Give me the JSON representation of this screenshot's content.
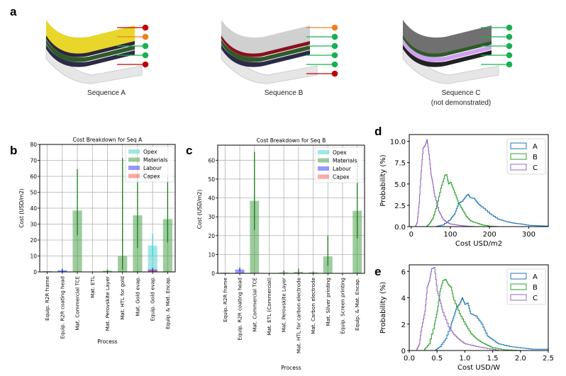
{
  "panel_a": {
    "letter": "a",
    "sequences": [
      {
        "label": "Sequence A",
        "sublabel": "",
        "layer_colors": [
          "#e8d62a",
          "#c9c9f0",
          "#8b0f1e",
          "#2c2440",
          "#2f5a2a",
          "#2c2a48",
          "#e8e8e8"
        ],
        "markers": [
          "#c00000",
          "#f08020",
          "#18b050",
          "#18b050",
          "#c00000"
        ]
      },
      {
        "label": "Sequence B",
        "sublabel": "",
        "layer_colors": [
          "#d0d0d0",
          "#111111",
          "#c9c9f0",
          "#8b0f1e",
          "#2f5a2a",
          "#2c2a48",
          "#e8e8e8"
        ],
        "markers": [
          "#f08020",
          "#18b050",
          "#18b050",
          "#18b050",
          "#18b050",
          "#c00000"
        ]
      },
      {
        "label": "Sequence C",
        "sublabel": "(not demonstrated)",
        "layer_colors": [
          "#707070",
          "#111111",
          "#8b0f1e",
          "#2f5a2a",
          "#d0a0f0",
          "#222222",
          "#e8e8e8"
        ],
        "markers": [
          "#18b050",
          "#18b050",
          "#18b050",
          "#18b050",
          "#18b050"
        ]
      }
    ]
  },
  "chart_data": [
    {
      "id": "b",
      "letter": "b",
      "type": "bar",
      "title": "Cost Breakdown for Seq A",
      "xlabel": "Process",
      "ylabel": "Cost (USD/m2)",
      "ylim": [
        0,
        80
      ],
      "yticks": [
        0,
        10,
        20,
        30,
        40,
        50,
        60,
        70,
        80
      ],
      "grid": true,
      "legend_position": "top-right",
      "categories": [
        "Equip. R2R frame",
        "Equip. R2R coating head",
        "Mat. Commercial TCE",
        "Mat. ETL",
        "Mat. Perovskite Layer",
        "Mat. HTL for gold",
        "Mat. Gold evap.",
        "Equip. Gold evap.",
        "Equip. & Mat. Encap."
      ],
      "series": [
        {
          "name": "Opex",
          "color": "#40d0d0",
          "values": [
            0.3,
            0.5,
            0,
            0,
            0,
            0,
            0,
            16.5,
            0
          ],
          "err_low": [
            0,
            0,
            0,
            0,
            0,
            0,
            0,
            10.5,
            0
          ],
          "err_high": [
            0,
            0,
            0,
            0,
            0,
            0,
            0,
            24,
            0
          ]
        },
        {
          "name": "Materials",
          "color": "#3c9a3c",
          "values": [
            0,
            0,
            38.5,
            0,
            0.8,
            10,
            35.5,
            0,
            33.2
          ],
          "err_low": [
            0,
            0,
            23,
            0,
            0,
            1.5,
            15,
            0,
            18.5
          ],
          "err_high": [
            0,
            0,
            64.5,
            0,
            1.5,
            71.5,
            78,
            0,
            60
          ]
        },
        {
          "name": "Labour",
          "color": "#3030ff",
          "values": [
            0.4,
            1.0,
            0,
            0,
            0,
            0,
            0,
            1.5,
            0
          ],
          "err_low": [
            0,
            0,
            0,
            0,
            0,
            0,
            0,
            0,
            0
          ],
          "err_high": [
            0,
            2,
            0,
            0,
            0,
            0,
            0,
            2.5,
            0
          ]
        },
        {
          "name": "Capex",
          "color": "#ff5050",
          "values": [
            0,
            0,
            0,
            0,
            0,
            0,
            0,
            1.5,
            0
          ],
          "err_low": [
            0,
            0,
            0,
            0,
            0,
            0,
            0,
            0,
            0
          ],
          "err_high": [
            0,
            0,
            0,
            0,
            0,
            0,
            0,
            0,
            0
          ]
        }
      ]
    },
    {
      "id": "c",
      "letter": "c",
      "type": "bar",
      "title": "Cost Breakdown for Seq B",
      "xlabel": "Process",
      "ylabel": "Cost (USD/m2)",
      "ylim": [
        0,
        68
      ],
      "yticks": [
        0,
        10,
        20,
        30,
        40,
        50,
        60
      ],
      "grid": true,
      "legend_position": "top-right",
      "categories": [
        "Equip. R2R frame",
        "Equip. R2R coating head",
        "Mat. Commercial TCE",
        "Mat. ETL (Commercial)",
        "Mat. Perovskite Layer",
        "Mat. HTL for carbon electrode",
        "Mat. Carbon electrode",
        "Mat. Silver printing",
        "Equip. Screen printing",
        "Equip. & Mat. Encap."
      ],
      "series": [
        {
          "name": "Opex",
          "color": "#40d0d0",
          "values": [
            0.2,
            0,
            0,
            0,
            0,
            0,
            0,
            0,
            0,
            0
          ],
          "err_low": [
            0,
            0,
            0,
            0,
            0,
            0,
            0,
            0,
            0,
            0
          ],
          "err_high": [
            0,
            0,
            0,
            0,
            0,
            0,
            0,
            0,
            0,
            0
          ]
        },
        {
          "name": "Materials",
          "color": "#3c9a3c",
          "values": [
            0,
            0,
            38.5,
            0,
            0.5,
            0.8,
            0.5,
            9,
            0,
            33.2
          ],
          "err_low": [
            0,
            0,
            23,
            0,
            0,
            0,
            0,
            4,
            0,
            18.5
          ],
          "err_high": [
            0,
            0,
            64.5,
            0,
            1.5,
            2.5,
            1,
            20,
            0,
            60
          ]
        },
        {
          "name": "Labour",
          "color": "#3030ff",
          "values": [
            0.3,
            2.0,
            0,
            0,
            0,
            0,
            0,
            0,
            0.2,
            0
          ],
          "err_low": [
            0,
            1,
            0,
            0,
            0,
            0,
            0,
            0,
            0,
            0
          ],
          "err_high": [
            0,
            3,
            0,
            0,
            0,
            0,
            0,
            0,
            0,
            0
          ]
        },
        {
          "name": "Capex",
          "color": "#ff5050",
          "values": [
            0,
            0,
            0,
            0,
            0,
            0,
            0,
            0,
            0,
            0
          ],
          "err_low": [
            0,
            0,
            0,
            0,
            0,
            0,
            0,
            0,
            0,
            0
          ],
          "err_high": [
            0,
            0,
            0,
            0,
            0,
            0,
            0,
            0,
            0,
            0
          ]
        }
      ]
    },
    {
      "id": "d",
      "letter": "d",
      "type": "line",
      "subtype": "step-histogram",
      "xlabel": "Cost USD/m2",
      "ylabel": "Probability (%)",
      "xlim": [
        -5,
        350
      ],
      "ylim": [
        0,
        10.8
      ],
      "xticks": [
        0,
        100,
        200,
        300
      ],
      "yticks": [
        0.0,
        2.5,
        5.0,
        7.5,
        10.0
      ],
      "ytick_labels": [
        "0.0",
        "2.5",
        "5.0",
        "7.5",
        "10.0"
      ],
      "legend_position": "top-right",
      "series": [
        {
          "name": "A",
          "color": "#1f77b4",
          "peak_x": 145,
          "peak_y": 3.8,
          "x": [
            60,
            80,
            100,
            110,
            120,
            130,
            140,
            145,
            150,
            160,
            170,
            180,
            200,
            220,
            240,
            260,
            280,
            300,
            320,
            350
          ],
          "values": [
            0.0,
            0.2,
            0.9,
            1.5,
            2.7,
            3.0,
            3.6,
            3.8,
            3.4,
            3.3,
            2.7,
            2.3,
            1.5,
            0.9,
            0.6,
            0.4,
            0.3,
            0.15,
            0.1,
            0.05
          ]
        },
        {
          "name": "B",
          "color": "#2ca02c",
          "peak_x": 87,
          "peak_y": 6.1,
          "x": [
            38,
            45,
            55,
            65,
            75,
            85,
            90,
            95,
            100,
            110,
            120,
            130,
            140,
            150,
            160,
            180,
            200,
            220
          ],
          "values": [
            0.0,
            0.3,
            1.0,
            2.5,
            4.5,
            6.0,
            6.1,
            5.0,
            5.2,
            4.0,
            2.8,
            2.0,
            1.2,
            0.7,
            0.5,
            0.2,
            0.05,
            0.0
          ]
        },
        {
          "name": "C",
          "color": "#9467bd",
          "peak_x": 40,
          "peak_y": 10.2,
          "x": [
            10,
            15,
            20,
            25,
            30,
            35,
            40,
            45,
            50,
            55,
            60,
            70,
            80,
            90,
            100,
            120,
            140,
            160
          ],
          "values": [
            0.0,
            0.5,
            2.8,
            6.5,
            9.2,
            9.5,
            10.2,
            8.5,
            6.2,
            5.0,
            3.5,
            1.8,
            0.9,
            0.5,
            0.3,
            0.15,
            0.05,
            0.0
          ]
        }
      ]
    },
    {
      "id": "e",
      "letter": "e",
      "type": "line",
      "subtype": "step-histogram",
      "xlabel": "Cost USD/W",
      "ylabel": "Probability (%)",
      "xlim": [
        0,
        2.5
      ],
      "ylim": [
        0,
        6.5
      ],
      "xticks": [
        0.0,
        0.5,
        1.0,
        1.5,
        2.0,
        2.5
      ],
      "xtick_labels": [
        "0.0",
        "0.5",
        "1.0",
        "1.5",
        "2.0",
        "2.5"
      ],
      "yticks": [
        0,
        2,
        4,
        6
      ],
      "legend_position": "top-right",
      "series": [
        {
          "name": "A",
          "color": "#1f77b4",
          "x": [
            0.45,
            0.55,
            0.65,
            0.75,
            0.8,
            0.85,
            0.9,
            0.95,
            1.0,
            1.05,
            1.1,
            1.2,
            1.3,
            1.4,
            1.5,
            1.6,
            1.8,
            2.0,
            2.2,
            2.5
          ],
          "values": [
            0.0,
            0.3,
            0.9,
            2.0,
            2.6,
            3.3,
            3.5,
            4.0,
            3.5,
            3.6,
            2.8,
            2.6,
            2.0,
            1.1,
            0.8,
            0.5,
            0.3,
            0.2,
            0.1,
            0.1
          ]
        },
        {
          "name": "B",
          "color": "#2ca02c",
          "x": [
            0.25,
            0.35,
            0.45,
            0.5,
            0.55,
            0.6,
            0.65,
            0.7,
            0.75,
            0.8,
            0.9,
            1.0,
            1.1,
            1.2,
            1.3,
            1.4,
            1.5,
            1.7,
            2.0
          ],
          "values": [
            0.0,
            0.5,
            2.0,
            3.0,
            4.5,
            5.3,
            5.4,
            5.0,
            4.8,
            3.8,
            2.8,
            2.0,
            1.3,
            0.9,
            0.6,
            0.4,
            0.2,
            0.05,
            0.0
          ]
        },
        {
          "name": "C",
          "color": "#9467bd",
          "x": [
            0.12,
            0.18,
            0.22,
            0.28,
            0.32,
            0.36,
            0.4,
            0.45,
            0.5,
            0.55,
            0.6,
            0.7,
            0.8,
            0.9,
            1.0,
            1.2,
            1.4,
            1.6
          ],
          "values": [
            0.0,
            0.5,
            1.8,
            3.0,
            4.8,
            5.3,
            6.2,
            6.3,
            4.5,
            3.8,
            2.9,
            1.8,
            1.2,
            0.8,
            0.5,
            0.3,
            0.15,
            0.0
          ]
        }
      ]
    }
  ]
}
